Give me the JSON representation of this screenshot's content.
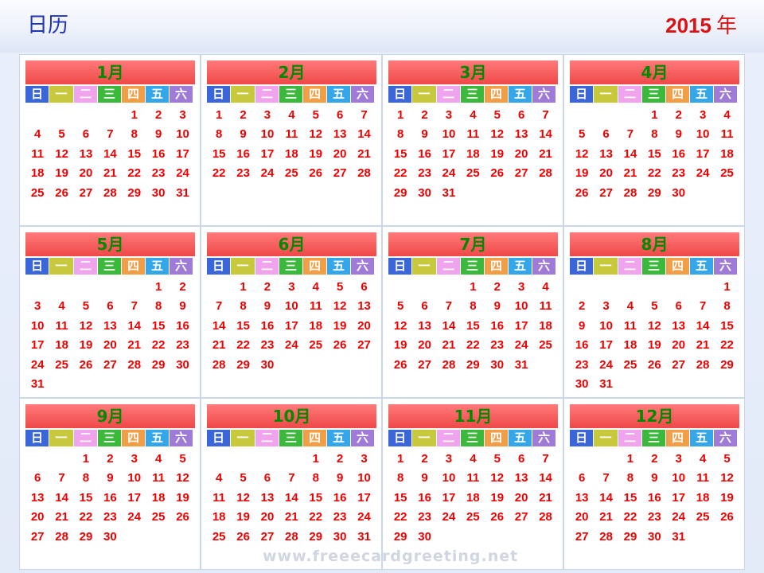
{
  "header": {
    "title": "日历",
    "year": "2015",
    "year_unit": "年"
  },
  "weekday_headers": [
    {
      "label": "日",
      "bg": "#3b66d9",
      "fg": "#ffffff"
    },
    {
      "label": "一",
      "bg": "#c8c83c",
      "fg": "#ffffff"
    },
    {
      "label": "二",
      "bg": "#f0a4ee",
      "fg": "#ffffff"
    },
    {
      "label": "三",
      "bg": "#3cb83c",
      "fg": "#ffffff"
    },
    {
      "label": "四",
      "bg": "#f29e46",
      "fg": "#ffffff"
    },
    {
      "label": "五",
      "bg": "#35a7e8",
      "fg": "#ffffff"
    },
    {
      "label": "六",
      "bg": "#9f7ad6",
      "fg": "#ffffff"
    }
  ],
  "months": [
    {
      "label": "1月",
      "first_weekday": 4,
      "days": 31
    },
    {
      "label": "2月",
      "first_weekday": 0,
      "days": 28
    },
    {
      "label": "3月",
      "first_weekday": 0,
      "days": 31
    },
    {
      "label": "4月",
      "first_weekday": 3,
      "days": 30
    },
    {
      "label": "5月",
      "first_weekday": 5,
      "days": 31
    },
    {
      "label": "6月",
      "first_weekday": 1,
      "days": 30
    },
    {
      "label": "7月",
      "first_weekday": 3,
      "days": 31
    },
    {
      "label": "8月",
      "first_weekday": 6,
      "days": 31
    },
    {
      "label": "9月",
      "first_weekday": 2,
      "days": 30
    },
    {
      "label": "10月",
      "first_weekday": 4,
      "days": 31
    },
    {
      "label": "11月",
      "first_weekday": 0,
      "days": 30
    },
    {
      "label": "12月",
      "first_weekday": 2,
      "days": 31
    }
  ],
  "watermark": "www.freeecardgreeting.net",
  "colors": {
    "title_text": "#2233bb",
    "year_text": "#dd1111",
    "month_title_bg": "#f05a5a",
    "month_title_text": "#008a00",
    "day_text": "#ee0000"
  }
}
